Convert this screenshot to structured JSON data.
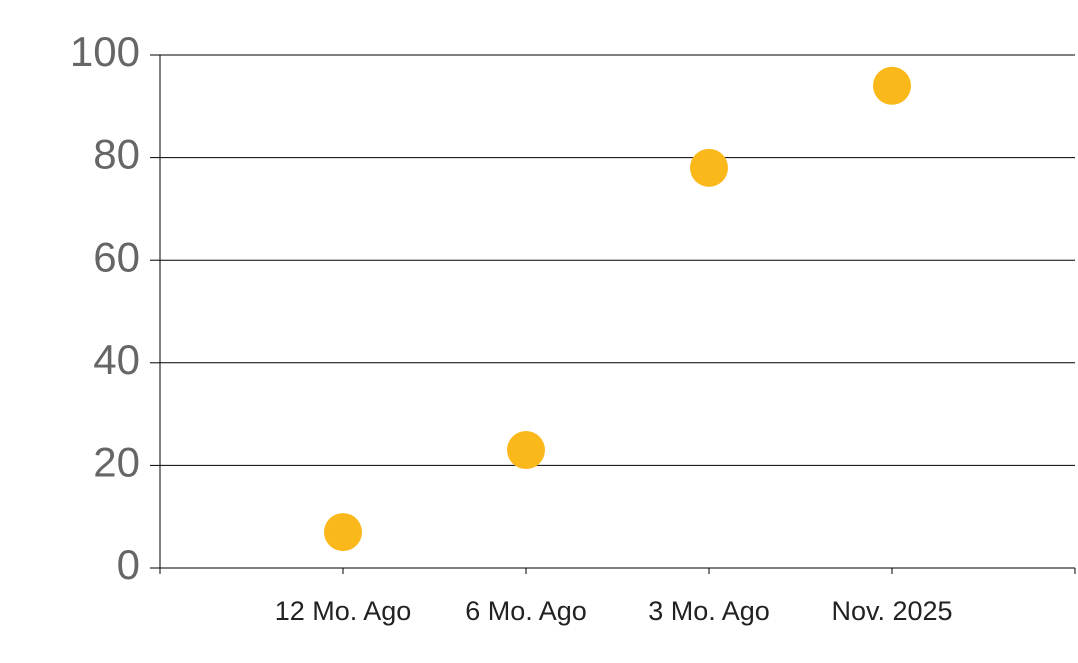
{
  "chart_data": {
    "type": "line",
    "categories": [
      "12 Mo. Ago",
      "6 Mo. Ago",
      "3 Mo. Ago",
      "Nov. 2025"
    ],
    "series": [
      {
        "color": "#666666",
        "marker_color": "#fbb81b",
        "values": [
          7,
          23,
          78,
          94
        ]
      }
    ],
    "ylim": [
      0,
      100
    ],
    "yticks": [
      0,
      20,
      40,
      60,
      80,
      100
    ],
    "grid": true
  }
}
